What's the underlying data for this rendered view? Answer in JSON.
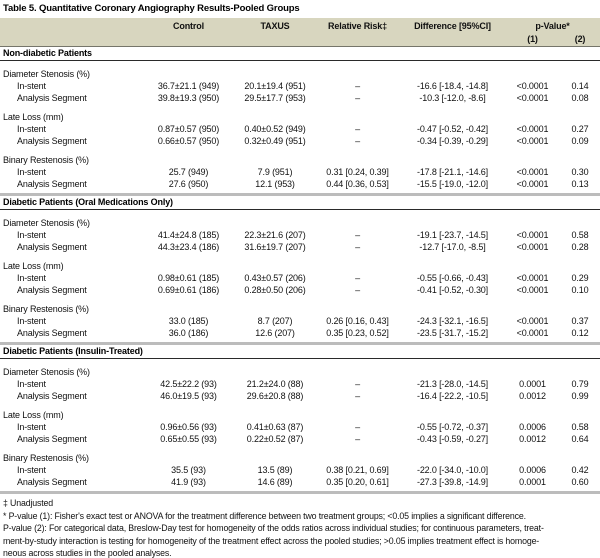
{
  "title": "Table 5. Quantitative Coronary Angiography Results-Pooled Groups",
  "columns": {
    "control": "Control",
    "taxus": "TAXUS",
    "relative_risk": "Relative Risk‡",
    "difference": "Difference [95%CI]",
    "p_value": "p-Value*",
    "p1": "(1)",
    "p2": "(2)"
  },
  "sections": [
    {
      "name": "Non-diabetic Patients",
      "groups": [
        {
          "label": "Diameter Stenosis (%)",
          "rows": [
            {
              "label": "In-stent",
              "control": "36.7±21.1 (949)",
              "taxus": "20.1±19.4 (951)",
              "rr": "–",
              "diff": "-16.6 [-18.4, -14.8]",
              "p1": "<0.0001",
              "p2": "0.14"
            },
            {
              "label": "Analysis Segment",
              "control": "39.8±19.3 (950)",
              "taxus": "29.5±17.7 (953)",
              "rr": "–",
              "diff": "-10.3 [-12.0, -8.6]",
              "p1": "<0.0001",
              "p2": "0.08"
            }
          ]
        },
        {
          "label": "Late Loss (mm)",
          "rows": [
            {
              "label": "In-stent",
              "control": "0.87±0.57 (950)",
              "taxus": "0.40±0.52 (949)",
              "rr": "–",
              "diff": "-0.47 [-0.52, -0.42]",
              "p1": "<0.0001",
              "p2": "0.27"
            },
            {
              "label": "Analysis Segment",
              "control": "0.66±0.57 (950)",
              "taxus": "0.32±0.49 (951)",
              "rr": "–",
              "diff": "-0.34 [-0.39, -0.29]",
              "p1": "<0.0001",
              "p2": "0.09"
            }
          ]
        },
        {
          "label": "Binary Restenosis (%)",
          "rows": [
            {
              "label": "In-stent",
              "control": "25.7 (949)",
              "taxus": "7.9 (951)",
              "rr": "0.31 [0.24, 0.39]",
              "diff": "-17.8 [-21.1, -14.6]",
              "p1": "<0.0001",
              "p2": "0.30"
            },
            {
              "label": "Analysis Segment",
              "control": "27.6 (950)",
              "taxus": "12.1 (953)",
              "rr": "0.44 [0.36, 0.53]",
              "diff": "-15.5 [-19.0, -12.0]",
              "p1": "<0.0001",
              "p2": "0.13"
            }
          ]
        }
      ]
    },
    {
      "name": "Diabetic Patients (Oral Medications Only)",
      "groups": [
        {
          "label": "Diameter Stenosis (%)",
          "rows": [
            {
              "label": "In-stent",
              "control": "41.4±24.8 (185)",
              "taxus": "22.3±21.6 (207)",
              "rr": "–",
              "diff": "-19.1 [-23.7, -14.5]",
              "p1": "<0.0001",
              "p2": "0.58"
            },
            {
              "label": "Analysis Segment",
              "control": "44.3±23.4 (186)",
              "taxus": "31.6±19.7 (207)",
              "rr": "–",
              "diff": "-12.7 [-17.0, -8.5]",
              "p1": "<0.0001",
              "p2": "0.28"
            }
          ]
        },
        {
          "label": "Late Loss (mm)",
          "rows": [
            {
              "label": "In-stent",
              "control": "0.98±0.61 (185)",
              "taxus": "0.43±0.57 (206)",
              "rr": "–",
              "diff": "-0.55 [-0.66, -0.43]",
              "p1": "<0.0001",
              "p2": "0.29"
            },
            {
              "label": "Analysis Segment",
              "control": "0.69±0.61 (186)",
              "taxus": "0.28±0.50 (206)",
              "rr": "–",
              "diff": "-0.41 [-0.52, -0.30]",
              "p1": "<0.0001",
              "p2": "0.10"
            }
          ]
        },
        {
          "label": "Binary Restenosis (%)",
          "rows": [
            {
              "label": "In-stent",
              "control": "33.0 (185)",
              "taxus": "8.7 (207)",
              "rr": "0.26 [0.16, 0.43]",
              "diff": "-24.3 [-32.1, -16.5]",
              "p1": "<0.0001",
              "p2": "0.37"
            },
            {
              "label": "Analysis Segment",
              "control": "36.0 (186)",
              "taxus": "12.6 (207)",
              "rr": "0.35 [0.23, 0.52]",
              "diff": "-23.5 [-31.7, -15.2]",
              "p1": "<0.0001",
              "p2": "0.12"
            }
          ]
        }
      ]
    },
    {
      "name": "Diabetic Patients (Insulin-Treated)",
      "groups": [
        {
          "label": "Diameter Stenosis (%)",
          "rows": [
            {
              "label": "In-stent",
              "control": "42.5±22.2 (93)",
              "taxus": "21.2±24.0 (88)",
              "rr": "–",
              "diff": "-21.3 [-28.0, -14.5]",
              "p1": "0.0001",
              "p2": "0.79"
            },
            {
              "label": "Analysis Segment",
              "control": "46.0±19.5 (93)",
              "taxus": "29.6±20.8 (88)",
              "rr": "–",
              "diff": "-16.4 [-22.2, -10.5]",
              "p1": "0.0012",
              "p2": "0.99"
            }
          ]
        },
        {
          "label": "Late Loss (mm)",
          "rows": [
            {
              "label": "In-stent",
              "control": "0.96±0.56 (93)",
              "taxus": "0.41±0.63 (87)",
              "rr": "–",
              "diff": "-0.55 [-0.72, -0.37]",
              "p1": "0.0006",
              "p2": "0.58"
            },
            {
              "label": "Analysis Segment",
              "control": "0.65±0.55 (93)",
              "taxus": "0.22±0.52 (87)",
              "rr": "–",
              "diff": "-0.43 [-0.59, -0.27]",
              "p1": "0.0012",
              "p2": "0.64"
            }
          ]
        },
        {
          "label": "Binary Restenosis (%)",
          "rows": [
            {
              "label": "In-stent",
              "control": "35.5 (93)",
              "taxus": "13.5 (89)",
              "rr": "0.38 [0.21, 0.69]",
              "diff": "-22.0 [-34.0, -10.0]",
              "p1": "0.0006",
              "p2": "0.42"
            },
            {
              "label": "Analysis Segment",
              "control": "41.9 (93)",
              "taxus": "14.6 (89)",
              "rr": "0.35 [0.20, 0.61]",
              "diff": "-27.3 [-39.8, -14.9]",
              "p1": "0.0001",
              "p2": "0.60"
            }
          ]
        }
      ]
    }
  ],
  "footnotes": {
    "unadjusted": "‡ Unadjusted",
    "p1": "* P-value (1): Fisher's exact test or ANOVA for the treatment difference between two treatment groups; <0.05 implies a significant difference.",
    "p2_lines": [
      "P-value (2): For categorical data, Breslow-Day test for homogeneity of the odds ratios across individual studies; for continuous parameters, treat-",
      "ment-by-study interaction is testing for homogeneity of the treatment effect across the pooled studies; >0.05 implies treatment effect is homoge-",
      "neous across studies in the pooled analyses."
    ]
  }
}
